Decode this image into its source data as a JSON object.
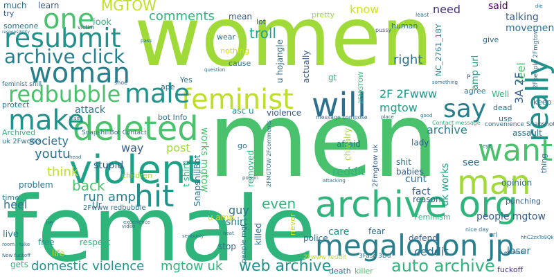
{
  "palette": {
    "lime": "#a0da39",
    "lightgreen": "#4ac16d",
    "green": "#2fb47c",
    "teal": "#1fa187",
    "tealblue": "#21918c",
    "blue": "#277f8e",
    "darkblue": "#2d708e",
    "slate": "#365c8d",
    "indigo": "#3f4788",
    "purple": "#46327e",
    "dark": "#440154",
    "yellow": "#bddf26",
    "brightyellow": "#d0e11c"
  },
  "words": [
    {
      "text": "women"
    },
    {
      "text": "men"
    },
    {
      "text": "female"
    },
    {
      "text": "violent"
    },
    {
      "text": "archive org"
    },
    {
      "text": "megalodon jp"
    },
    {
      "text": "deleted"
    },
    {
      "text": "woman"
    },
    {
      "text": "resubmit"
    },
    {
      "text": "archive click"
    },
    {
      "text": "hit"
    },
    {
      "text": "man"
    },
    {
      "text": "want"
    },
    {
      "text": "really"
    },
    {
      "text": "say"
    },
    {
      "text": "will"
    },
    {
      "text": "feminist"
    },
    {
      "text": "make"
    },
    {
      "text": "male"
    },
    {
      "text": "redbubble"
    },
    {
      "text": "one"
    },
    {
      "text": "auto archive"
    },
    {
      "text": "web archive"
    },
    {
      "text": "domestic violence"
    },
    {
      "text": "mgtow uk"
    },
    {
      "text": "MGTOW"
    },
    {
      "text": "comments"
    },
    {
      "text": "troll"
    },
    {
      "text": "know"
    },
    {
      "text": "need"
    },
    {
      "text": "said"
    },
    {
      "text": "talking"
    },
    {
      "text": "movement"
    },
    {
      "text": "feel"
    },
    {
      "text": "right"
    },
    {
      "text": "NC_2761_18Y"
    },
    {
      "text": "3A 2F"
    },
    {
      "text": "amp url"
    },
    {
      "text": "2F 2Fwww"
    },
    {
      "text": "mgtow"
    },
    {
      "text": "archive"
    },
    {
      "text": "ceddit"
    },
    {
      "text": "people mgtow"
    },
    {
      "text": "loser"
    },
    {
      "text": "see"
    },
    {
      "text": "opinion"
    },
    {
      "text": "punching"
    },
    {
      "text": "assault"
    },
    {
      "text": "uk works"
    },
    {
      "text": "cunt"
    },
    {
      "text": "fact"
    },
    {
      "text": "reason"
    },
    {
      "text": "care"
    },
    {
      "text": "fear"
    },
    {
      "text": "defend"
    },
    {
      "text": "reddit"
    },
    {
      "text": "shit"
    },
    {
      "text": "babies"
    },
    {
      "text": "lady"
    },
    {
      "text": "afraid"
    },
    {
      "text": "society"
    },
    {
      "text": "youtu"
    },
    {
      "text": "think"
    },
    {
      "text": "back"
    },
    {
      "text": "run amp"
    },
    {
      "text": "way"
    },
    {
      "text": "post"
    },
    {
      "text": "stupid"
    },
    {
      "text": "attack"
    },
    {
      "text": "even"
    },
    {
      "text": "guy"
    },
    {
      "text": "shirt"
    },
    {
      "text": "works mgtow"
    },
    {
      "text": "problem"
    },
    {
      "text": "heel"
    },
    {
      "text": "time"
    },
    {
      "text": "live"
    },
    {
      "text": "free"
    },
    {
      "text": "life"
    },
    {
      "text": "respect"
    },
    {
      "text": "gets"
    },
    {
      "text": "stop"
    },
    {
      "text": "killed"
    },
    {
      "text": "police"
    },
    {
      "text": "killer"
    },
    {
      "text": "death"
    },
    {
      "text": "fuckoff"
    },
    {
      "text": "learn"
    },
    {
      "text": "much"
    },
    {
      "text": "try"
    },
    {
      "text": "someone"
    },
    {
      "text": "protect"
    },
    {
      "text": "look"
    },
    {
      "text": "mean"
    },
    {
      "text": "lot"
    },
    {
      "text": "human"
    },
    {
      "text": "pretty"
    },
    {
      "text": "nothing"
    },
    {
      "text": "cause"
    },
    {
      "text": "wear"
    },
    {
      "text": "u hojangle"
    },
    {
      "text": "actually"
    },
    {
      "text": "gt"
    },
    {
      "text": "Yes"
    },
    {
      "text": "ape"
    },
    {
      "text": "bot Info"
    },
    {
      "text": "asc u"
    },
    {
      "text": "violence"
    },
    {
      "text": "removed"
    },
    {
      "text": "chivalry"
    },
    {
      "text": "Well"
    },
    {
      "text": "agree"
    },
    {
      "text": "dead"
    },
    {
      "text": "use"
    },
    {
      "text": "keep"
    },
    {
      "text": "give"
    },
    {
      "text": "children"
    },
    {
      "text": "go"
    },
    {
      "text": "Ur"
    },
    {
      "text": "t shirt"
    },
    {
      "text": "SnapshillBot"
    },
    {
      "text": "2Fmgtow uk"
    },
    {
      "text": "Feminism"
    },
    {
      "text": "thing"
    },
    {
      "text": "Archived"
    },
    {
      "text": "uk 2Fworks"
    },
    {
      "text": "2Fwww redbubble"
    },
    {
      "text": "never"
    },
    {
      "text": "u amp"
    },
    {
      "text": "people mgt"
    },
    {
      "text": "3Fasc 3Du"
    },
    {
      "text": "2Fwww reddit"
    },
    {
      "text": "SnapshillBot Contact"
    },
    {
      "text": "2FMGTOW"
    },
    {
      "text": "2Fpeople 2Fmgtow"
    },
    {
      "text": "convenience Snapshots"
    },
    {
      "text": "Contact message"
    },
    {
      "text": "message compose"
    },
    {
      "text": "2FMGTOW 2Fcomments"
    },
    {
      "text": "feminist shill"
    },
    {
      "text": "victim"
    },
    {
      "text": "shoe"
    },
    {
      "text": "least"
    },
    {
      "text": "pussy"
    },
    {
      "text": "nice day"
    },
    {
      "text": "url"
    },
    {
      "text": "evidence"
    },
    {
      "text": "hhC2zxTo9Qk"
    },
    {
      "text": "something"
    },
    {
      "text": "Now fuckoff"
    },
    {
      "text": "responsibility"
    },
    {
      "text": "attacking"
    },
    {
      "text": "poison"
    },
    {
      "text": "question"
    },
    {
      "text": "beat"
    },
    {
      "text": "seriously"
    },
    {
      "text": "experience"
    },
    {
      "text": "video"
    },
    {
      "text": "room"
    },
    {
      "text": "take"
    },
    {
      "text": "pass"
    },
    {
      "text": "die"
    },
    {
      "text": "lie"
    },
    {
      "text": "eye"
    },
    {
      "text": "head"
    },
    {
      "text": "P"
    },
    {
      "text": "place"
    },
    {
      "text": "good"
    },
    {
      "text": "lead"
    },
    {
      "text": "still"
    }
  ]
}
